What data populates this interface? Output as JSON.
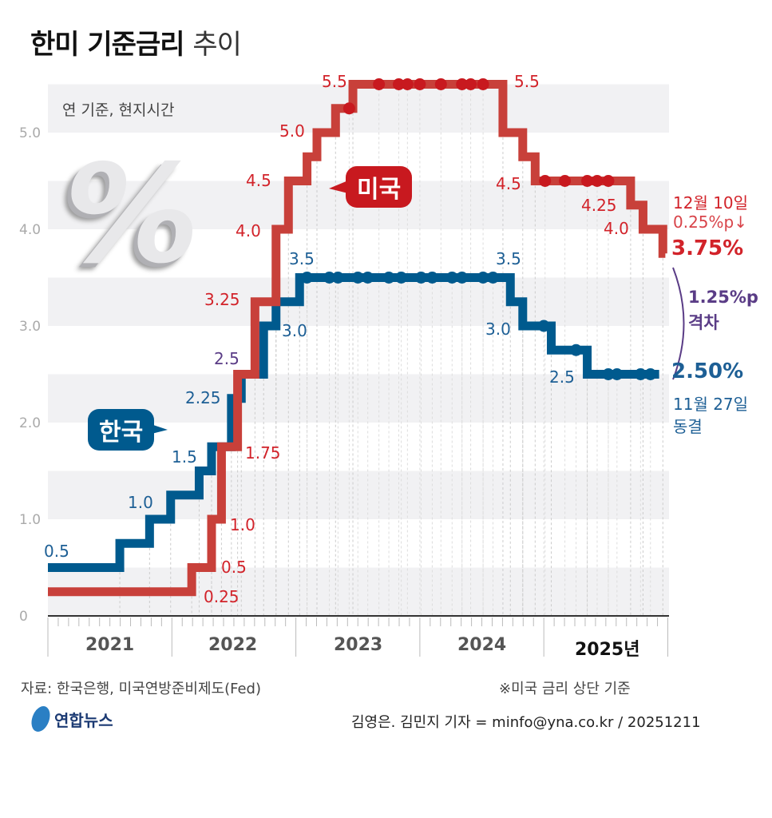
{
  "header": {
    "title_bold": "한미 기준금리",
    "title_light": "추이",
    "unit_note": "연 기준, 현지시간"
  },
  "colors": {
    "us": "#c8403a",
    "korea": "#005a8e",
    "us_text": "#d2232a",
    "korea_text": "#1d5f95",
    "gap": "#5a3c86"
  },
  "legend": {
    "us": "미국",
    "korea": "한국"
  },
  "chart_data": {
    "type": "line",
    "step": true,
    "ylim": [
      0,
      5.5
    ],
    "yticks": [
      "0",
      "1.0",
      "2.0",
      "3.0",
      "4.0",
      "5.0"
    ],
    "xlim": [
      2021,
      2026
    ],
    "xticks": [
      "2021",
      "2022",
      "2023",
      "2024",
      "2025년"
    ],
    "grid": "alternating horizontal bands",
    "series": [
      {
        "name": "미국",
        "steps": [
          [
            2021.0,
            0.25
          ],
          [
            2022.16,
            0.5
          ],
          [
            2022.32,
            1.0
          ],
          [
            2022.4,
            1.75
          ],
          [
            2022.53,
            2.5
          ],
          [
            2022.67,
            3.25
          ],
          [
            2022.84,
            4.0
          ],
          [
            2022.94,
            4.5
          ],
          [
            2023.09,
            4.75
          ],
          [
            2023.17,
            5.0
          ],
          [
            2023.32,
            5.25
          ],
          [
            2023.46,
            5.5
          ],
          [
            2024.67,
            5.0
          ],
          [
            2024.83,
            4.75
          ],
          [
            2024.93,
            4.5
          ],
          [
            2025.7,
            4.25
          ],
          [
            2025.8,
            4.0
          ],
          [
            2025.96,
            3.75
          ],
          [
            2025.98,
            3.75
          ]
        ],
        "holds": [
          [
            2023.43,
            5.25
          ],
          [
            2023.67,
            5.5
          ],
          [
            2023.83,
            5.5
          ],
          [
            2023.9,
            5.5
          ],
          [
            2024.0,
            5.5
          ],
          [
            2024.17,
            5.5
          ],
          [
            2024.34,
            5.5
          ],
          [
            2024.41,
            5.5
          ],
          [
            2024.51,
            5.5
          ],
          [
            2025.01,
            4.5
          ],
          [
            2025.17,
            4.5
          ],
          [
            2025.35,
            4.5
          ],
          [
            2025.43,
            4.5
          ],
          [
            2025.52,
            4.5
          ]
        ]
      },
      {
        "name": "한국",
        "steps": [
          [
            2021.0,
            0.5
          ],
          [
            2021.58,
            0.75
          ],
          [
            2021.82,
            1.0
          ],
          [
            2021.99,
            1.25
          ],
          [
            2022.22,
            1.5
          ],
          [
            2022.32,
            1.75
          ],
          [
            2022.48,
            2.25
          ],
          [
            2022.56,
            2.5
          ],
          [
            2022.74,
            3.0
          ],
          [
            2022.84,
            3.25
          ],
          [
            2023.03,
            3.5
          ],
          [
            2024.73,
            3.25
          ],
          [
            2024.83,
            3.0
          ],
          [
            2025.06,
            2.75
          ],
          [
            2025.35,
            2.5
          ],
          [
            2025.93,
            2.5
          ]
        ],
        "holds": [
          [
            2023.09,
            3.5
          ],
          [
            2023.27,
            3.5
          ],
          [
            2023.34,
            3.5
          ],
          [
            2023.5,
            3.5
          ],
          [
            2023.58,
            3.5
          ],
          [
            2023.75,
            3.5
          ],
          [
            2023.85,
            3.5
          ],
          [
            2024.01,
            3.5
          ],
          [
            2024.1,
            3.5
          ],
          [
            2024.26,
            3.5
          ],
          [
            2024.34,
            3.5
          ],
          [
            2024.51,
            3.5
          ],
          [
            2024.59,
            3.5
          ],
          [
            2025.0,
            3.0
          ],
          [
            2025.26,
            2.75
          ],
          [
            2025.52,
            2.5
          ],
          [
            2025.59,
            2.5
          ],
          [
            2025.78,
            2.5
          ],
          [
            2025.86,
            2.5
          ]
        ]
      }
    ],
    "labels": {
      "us": [
        "0.25",
        "0.5",
        "1.0",
        "1.75",
        "3.25",
        "4.0",
        "4.5",
        "5.0",
        "5.5",
        "5.5",
        "4.5",
        "4.25",
        "4.0"
      ],
      "korea": [
        "0.5",
        "1.0",
        "1.5",
        "2.25",
        "3.0",
        "3.5",
        "3.5",
        "3.0",
        "2.5"
      ],
      "shared": "2.5"
    },
    "annotations": {
      "us_date": "12월 10일",
      "us_change": "0.25%p↓",
      "us_rate": "3.75%",
      "gap": "1.25%p",
      "gap_label": "격차",
      "korea_rate": "2.50%",
      "korea_date": "11월 27일",
      "korea_change": "동결"
    }
  },
  "footer": {
    "source": "자료: 한국은행, 미국연방준비제도(Fed)",
    "note": "※미국 금리 상단 기준",
    "logo": "연합뉴스",
    "credit": "김영은. 김민지 기자 = minfo@yna.co.kr / 20251211"
  }
}
